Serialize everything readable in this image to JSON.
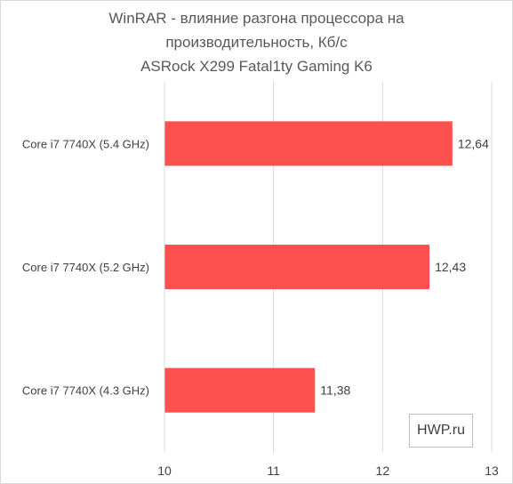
{
  "chart_data": {
    "type": "bar",
    "orientation": "horizontal",
    "title_lines": [
      "WinRAR - влияние разгона процессора на",
      "производительность, Кб/с",
      "ASRock X299 Fatal1ty Gaming K6"
    ],
    "categories": [
      "Core i7 7740X (5.4 GHz)",
      "Core i7 7740X (5.2 GHz)",
      "Core i7 7740X (4.3 GHz)"
    ],
    "values": [
      12.64,
      12.43,
      11.38
    ],
    "value_labels": [
      "12,64",
      "12,43",
      "11,38"
    ],
    "xlim": [
      10,
      13
    ],
    "x_ticks": [
      10,
      11,
      12,
      13
    ],
    "x_tick_labels": [
      "10",
      "11",
      "12",
      "13"
    ],
    "grid": true,
    "bar_color": "#ff5050",
    "grid_color": "#d9d9d9",
    "legend": "none"
  },
  "watermark": "HWP.ru"
}
